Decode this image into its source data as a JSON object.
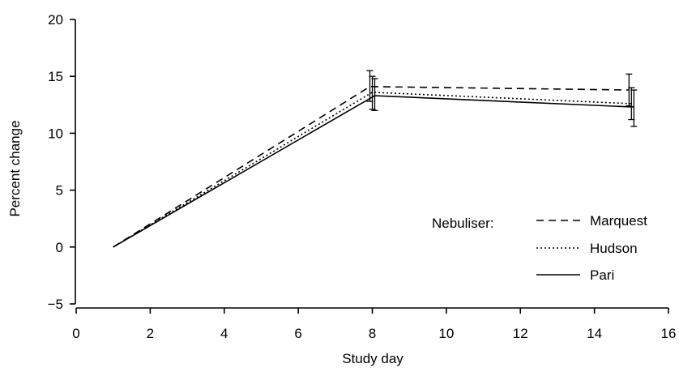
{
  "chart_data": {
    "type": "line",
    "title": "",
    "xlabel": "Study day",
    "ylabel": "Percent change",
    "xlim": [
      0,
      16
    ],
    "ylim": [
      -5,
      20
    ],
    "xticks": [
      0,
      2,
      4,
      6,
      8,
      10,
      12,
      14,
      16
    ],
    "yticks": [
      -5,
      0,
      5,
      10,
      15,
      20
    ],
    "x_tick_labels": [
      "0",
      "2",
      "4",
      "6",
      "8",
      "10",
      "12",
      "14",
      "16"
    ],
    "y_tick_labels": [
      "−5",
      "0",
      "5",
      "10",
      "15",
      "20"
    ],
    "grid": false,
    "legend": {
      "title": "Nebuliser:",
      "position": "right"
    },
    "series": [
      {
        "name": "Marquest",
        "style": "dashed",
        "color": "#000000",
        "points": [
          {
            "x": 1,
            "y": 0.0
          },
          {
            "x": 8,
            "y": 14.1,
            "err_low": 12.8,
            "err_high": 15.5
          },
          {
            "x": 15,
            "y": 13.8,
            "err_low": 12.4,
            "err_high": 15.2
          }
        ]
      },
      {
        "name": "Hudson",
        "style": "dotted",
        "color": "#000000",
        "points": [
          {
            "x": 1,
            "y": 0.0
          },
          {
            "x": 8,
            "y": 13.6,
            "err_low": 12.1,
            "err_high": 15.0
          },
          {
            "x": 15,
            "y": 12.6,
            "err_low": 11.2,
            "err_high": 14.0
          }
        ]
      },
      {
        "name": "Pari",
        "style": "solid",
        "color": "#000000",
        "points": [
          {
            "x": 1,
            "y": 0.0
          },
          {
            "x": 8,
            "y": 13.3,
            "err_low": 12.0,
            "err_high": 14.8
          },
          {
            "x": 15,
            "y": 12.3,
            "err_low": 10.6,
            "err_high": 13.8
          }
        ]
      }
    ]
  }
}
